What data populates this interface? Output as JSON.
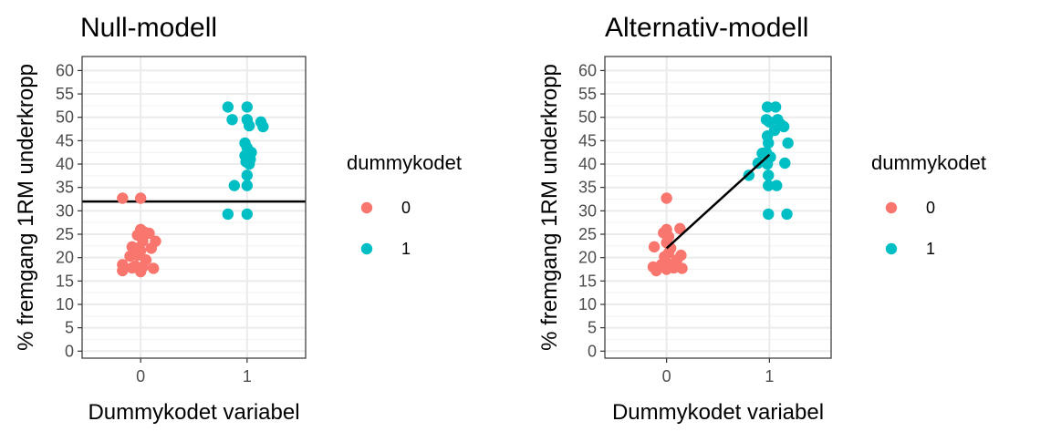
{
  "chart_data": [
    {
      "type": "scatter",
      "model": "null",
      "title": "Null-modell",
      "xlabel": "Dummykodet variabel",
      "ylabel": "% fremgang 1RM underkropp",
      "x_categories": [
        "0",
        "1"
      ],
      "xlim": [
        -0.55,
        1.55
      ],
      "ylim": [
        -1.5,
        63
      ],
      "yticks": [
        0,
        5,
        10,
        15,
        20,
        25,
        30,
        35,
        40,
        45,
        50,
        55,
        60
      ],
      "grid": true,
      "legend": {
        "title": "dummykodet",
        "position": "right",
        "entries": [
          "0",
          "1"
        ]
      },
      "colors": {
        "0": "#F8766D",
        "1": "#00BFC4",
        "line": "#000000"
      },
      "series": [
        {
          "group": "0",
          "points": [
            {
              "x": -0.17,
              "y": 32.7
            },
            {
              "x": 0.0,
              "y": 32.7
            },
            {
              "x": 0.0,
              "y": 26.0
            },
            {
              "x": 0.03,
              "y": 25.5
            },
            {
              "x": -0.03,
              "y": 24.8
            },
            {
              "x": 0.08,
              "y": 25.2
            },
            {
              "x": 0.02,
              "y": 23.5
            },
            {
              "x": 0.14,
              "y": 23.5
            },
            {
              "x": -0.08,
              "y": 22.3
            },
            {
              "x": -0.04,
              "y": 22.0
            },
            {
              "x": 0.1,
              "y": 22.0
            },
            {
              "x": 0.0,
              "y": 21.5
            },
            {
              "x": -0.03,
              "y": 20.5
            },
            {
              "x": -0.1,
              "y": 20.3
            },
            {
              "x": 0.05,
              "y": 19.5
            },
            {
              "x": -0.17,
              "y": 18.5
            },
            {
              "x": -0.05,
              "y": 18.2
            },
            {
              "x": 0.02,
              "y": 18.0
            },
            {
              "x": 0.12,
              "y": 17.7
            },
            {
              "x": -0.17,
              "y": 17.2
            },
            {
              "x": 0.0,
              "y": 17.0
            },
            {
              "x": -0.08,
              "y": 17.8
            }
          ]
        },
        {
          "group": "1",
          "points": [
            {
              "x": 0.82,
              "y": 52.2
            },
            {
              "x": 1.0,
              "y": 52.2
            },
            {
              "x": 0.86,
              "y": 49.5
            },
            {
              "x": 1.0,
              "y": 49.5
            },
            {
              "x": 1.02,
              "y": 48.2
            },
            {
              "x": 1.13,
              "y": 49.0
            },
            {
              "x": 1.15,
              "y": 48.0
            },
            {
              "x": 0.98,
              "y": 44.5
            },
            {
              "x": 1.0,
              "y": 43.5
            },
            {
              "x": 1.04,
              "y": 42.5
            },
            {
              "x": 0.98,
              "y": 41.8
            },
            {
              "x": 1.03,
              "y": 41.0
            },
            {
              "x": 0.99,
              "y": 40.5
            },
            {
              "x": 1.02,
              "y": 40.0
            },
            {
              "x": 1.0,
              "y": 37.6
            },
            {
              "x": 0.88,
              "y": 35.4
            },
            {
              "x": 1.0,
              "y": 35.4
            },
            {
              "x": 0.82,
              "y": 29.3
            },
            {
              "x": 1.0,
              "y": 29.3
            }
          ]
        }
      ],
      "fit_line": {
        "type": "horizontal",
        "y": 32.0
      }
    },
    {
      "type": "scatter",
      "model": "alternative",
      "title": "Alternativ-modell",
      "xlabel": "Dummykodet variabel",
      "ylabel": "% fremgang 1RM underkropp",
      "x_categories": [
        "0",
        "1"
      ],
      "xlim": [
        -0.6,
        1.6
      ],
      "ylim": [
        -1.5,
        63
      ],
      "yticks": [
        0,
        5,
        10,
        15,
        20,
        25,
        30,
        35,
        40,
        45,
        50,
        55,
        60
      ],
      "grid": true,
      "legend": {
        "title": "dummykodet",
        "position": "right",
        "entries": [
          "0",
          "1"
        ]
      },
      "colors": {
        "0": "#F8766D",
        "1": "#00BFC4",
        "line": "#000000"
      },
      "series": [
        {
          "group": "0",
          "points": [
            {
              "x": 0.0,
              "y": 32.7
            },
            {
              "x": 0.0,
              "y": 26.0
            },
            {
              "x": -0.03,
              "y": 25.3
            },
            {
              "x": 0.13,
              "y": 26.2
            },
            {
              "x": 0.02,
              "y": 24.5
            },
            {
              "x": 0.0,
              "y": 23.2
            },
            {
              "x": -0.12,
              "y": 22.3
            },
            {
              "x": 0.04,
              "y": 22.0
            },
            {
              "x": 0.02,
              "y": 21.0
            },
            {
              "x": 0.14,
              "y": 20.5
            },
            {
              "x": -0.02,
              "y": 20.2
            },
            {
              "x": 0.1,
              "y": 19.5
            },
            {
              "x": 0.0,
              "y": 19.0
            },
            {
              "x": -0.05,
              "y": 18.5
            },
            {
              "x": -0.13,
              "y": 18.0
            },
            {
              "x": 0.04,
              "y": 18.0
            },
            {
              "x": 0.15,
              "y": 17.7
            },
            {
              "x": -0.1,
              "y": 17.2
            },
            {
              "x": 0.0,
              "y": 17.5
            },
            {
              "x": 0.07,
              "y": 17.8
            }
          ]
        },
        {
          "group": "1",
          "points": [
            {
              "x": 0.98,
              "y": 52.2
            },
            {
              "x": 1.06,
              "y": 52.2
            },
            {
              "x": 0.97,
              "y": 49.5
            },
            {
              "x": 1.0,
              "y": 49.0
            },
            {
              "x": 1.08,
              "y": 49.5
            },
            {
              "x": 1.11,
              "y": 48.5
            },
            {
              "x": 1.14,
              "y": 48.0
            },
            {
              "x": 1.05,
              "y": 47.2
            },
            {
              "x": 0.98,
              "y": 46.0
            },
            {
              "x": 1.18,
              "y": 44.5
            },
            {
              "x": 0.99,
              "y": 44.5
            },
            {
              "x": 0.97,
              "y": 42.5
            },
            {
              "x": 0.93,
              "y": 42.3
            },
            {
              "x": 1.01,
              "y": 41.5
            },
            {
              "x": 0.89,
              "y": 40.2
            },
            {
              "x": 1.15,
              "y": 40.2
            },
            {
              "x": 0.98,
              "y": 40.0
            },
            {
              "x": 0.8,
              "y": 37.6
            },
            {
              "x": 0.99,
              "y": 37.6
            },
            {
              "x": 0.99,
              "y": 35.4
            },
            {
              "x": 1.07,
              "y": 35.4
            },
            {
              "x": 0.99,
              "y": 29.3
            },
            {
              "x": 1.17,
              "y": 29.3
            }
          ]
        }
      ],
      "fit_line": {
        "type": "segment",
        "x0": 0.0,
        "y0": 22.0,
        "x1": 1.0,
        "y1": 42.0
      }
    }
  ]
}
